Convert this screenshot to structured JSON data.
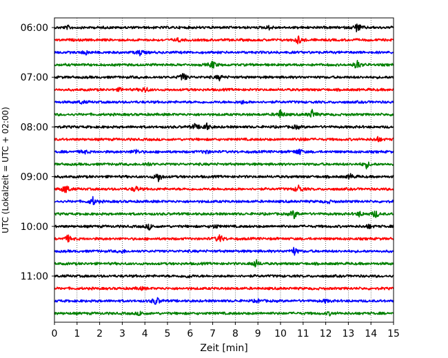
{
  "chart_data": {
    "type": "line",
    "title": "",
    "xlabel": "Zeit  [min]",
    "ylabel": "UTC (Lokalzeit = UTC + 02:00)",
    "xlim": [
      0,
      15
    ],
    "x_ticks": [
      "0",
      "1",
      "2",
      "3",
      "4",
      "5",
      "6",
      "7",
      "8",
      "9",
      "10",
      "11",
      "12",
      "13",
      "14",
      "15"
    ],
    "y_ticks": [
      "06:00",
      "07:00",
      "08:00",
      "09:00",
      "10:00",
      "11:00"
    ],
    "grid": "vertical dotted",
    "trace_colors": [
      "#000000",
      "#ff0000",
      "#0000ff",
      "#008000"
    ],
    "series": [
      {
        "start": "06:00",
        "events": [
          [
            13.4,
            1.0
          ],
          [
            0.6,
            0.3
          ],
          [
            9.5,
            0.35
          ]
        ]
      },
      {
        "start": "06:15",
        "events": [
          [
            10.8,
            0.8
          ],
          [
            5.5,
            0.3
          ]
        ]
      },
      {
        "start": "06:30",
        "events": [
          [
            3.8,
            0.6
          ],
          [
            1.4,
            0.4
          ]
        ]
      },
      {
        "start": "06:45",
        "events": [
          [
            7.0,
            0.8
          ],
          [
            13.4,
            0.9
          ]
        ]
      },
      {
        "start": "07:00",
        "events": [
          [
            5.7,
            0.9
          ],
          [
            7.3,
            0.5
          ]
        ]
      },
      {
        "start": "07:15",
        "events": [
          [
            4.0,
            0.6
          ],
          [
            2.9,
            0.3
          ]
        ]
      },
      {
        "start": "07:30",
        "events": [
          [
            1.2,
            0.3
          ],
          [
            8.3,
            0.3
          ]
        ]
      },
      {
        "start": "07:45",
        "events": [
          [
            10.0,
            0.9
          ],
          [
            11.4,
            0.9
          ]
        ]
      },
      {
        "start": "08:00",
        "events": [
          [
            6.7,
            0.9
          ],
          [
            6.2,
            0.5
          ],
          [
            10.7,
            0.4
          ]
        ]
      },
      {
        "start": "08:15",
        "events": [
          [
            14.3,
            0.5
          ],
          [
            11.0,
            0.3
          ]
        ]
      },
      {
        "start": "08:30",
        "events": [
          [
            10.8,
            0.7
          ],
          [
            3.6,
            0.5
          ],
          [
            6.7,
            0.4
          ],
          [
            1.3,
            0.4
          ]
        ]
      },
      {
        "start": "08:45",
        "events": [
          [
            13.8,
            0.7
          ],
          [
            4.1,
            0.4
          ]
        ]
      },
      {
        "start": "09:00",
        "events": [
          [
            4.6,
            1.0
          ],
          [
            13.1,
            0.5
          ]
        ]
      },
      {
        "start": "09:15",
        "events": [
          [
            0.5,
            1.0
          ],
          [
            3.6,
            0.6
          ],
          [
            10.8,
            0.8
          ]
        ]
      },
      {
        "start": "09:30",
        "events": [
          [
            1.7,
            0.8
          ],
          [
            12.1,
            0.3
          ]
        ]
      },
      {
        "start": "09:45",
        "events": [
          [
            10.6,
            0.9
          ],
          [
            14.2,
            0.8
          ],
          [
            13.5,
            0.5
          ]
        ]
      },
      {
        "start": "10:00",
        "events": [
          [
            4.2,
            0.6
          ],
          [
            7.1,
            0.4
          ],
          [
            13.9,
            0.4
          ]
        ]
      },
      {
        "start": "10:15",
        "events": [
          [
            7.3,
            0.9
          ],
          [
            0.6,
            0.7
          ]
        ]
      },
      {
        "start": "10:30",
        "events": [
          [
            10.6,
            0.8
          ],
          [
            3.0,
            0.3
          ]
        ]
      },
      {
        "start": "10:45",
        "events": [
          [
            8.9,
            0.8
          ]
        ]
      },
      {
        "start": "11:00",
        "events": [
          [
            5.9,
            0.3
          ]
        ]
      },
      {
        "start": "11:15",
        "events": [
          [
            3.8,
            0.3
          ]
        ]
      },
      {
        "start": "11:30",
        "events": [
          [
            4.5,
            0.9
          ],
          [
            12.0,
            0.3
          ],
          [
            9.0,
            0.3
          ]
        ]
      },
      {
        "start": "11:45",
        "events": [
          [
            3.8,
            0.4
          ],
          [
            12.2,
            0.3
          ]
        ]
      }
    ]
  }
}
